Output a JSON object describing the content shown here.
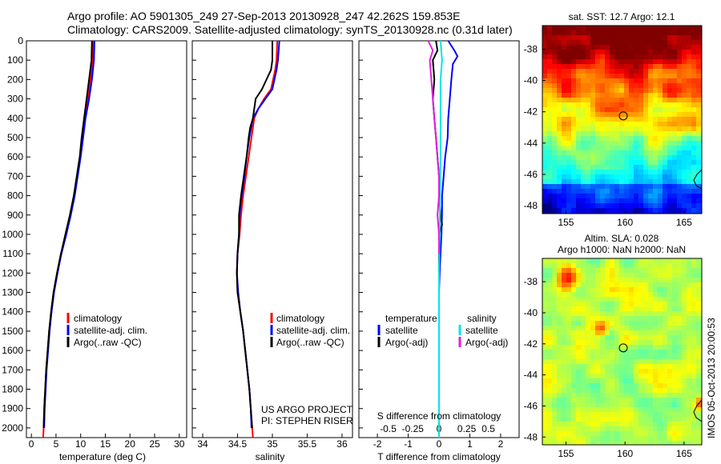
{
  "header": {
    "line1": "Argo profile: AO 5901305_249 27-Sep-2013 20130928_247 42.262S 159.853E",
    "line2": "Climatology: CARS2009. Satellite-adjusted climatology: synTS_20130928.nc (0.31d later)"
  },
  "credit": {
    "line1": "US ARGO PROJECT",
    "line2": "PI: STEPHEN RISER"
  },
  "side_stamp": "IMOS 05-Oct-2013 20:00:53",
  "colors": {
    "climatology": "#ff0000",
    "satellite": "#0000ff",
    "argo": "#000000",
    "salinity_satellite": "#00e6e6",
    "salinity_argo": "#e020e0",
    "marker": "#000000"
  },
  "chart_data": [
    {
      "type": "line",
      "id": "temperature-profile",
      "xlabel": "temperature (deg C)",
      "ylim": [
        2050,
        0
      ],
      "xlim": [
        -1,
        31.5
      ],
      "xticks": [
        0,
        5,
        10,
        15,
        20,
        25,
        30
      ],
      "yticks": [
        0,
        100,
        200,
        300,
        400,
        500,
        600,
        700,
        800,
        900,
        1000,
        1100,
        1200,
        1300,
        1400,
        1500,
        1600,
        1700,
        1800,
        1900,
        2000
      ],
      "legend": [
        "climatology",
        "satellite-adj. clim.",
        "Argo(..raw -QC)"
      ],
      "series": [
        {
          "name": "climatology",
          "color": "#ff0000",
          "points": [
            [
              12.5,
              0
            ],
            [
              12.4,
              100
            ],
            [
              12.0,
              200
            ],
            [
              11.5,
              300
            ],
            [
              10.9,
              400
            ],
            [
              10.4,
              500
            ],
            [
              9.9,
              600
            ],
            [
              9.3,
              700
            ],
            [
              8.7,
              800
            ],
            [
              7.9,
              900
            ],
            [
              7.0,
              1000
            ],
            [
              6.0,
              1100
            ],
            [
              5.2,
              1200
            ],
            [
              4.5,
              1300
            ],
            [
              4.0,
              1400
            ],
            [
              3.6,
              1500
            ],
            [
              3.3,
              1600
            ],
            [
              3.0,
              1700
            ],
            [
              2.8,
              1800
            ],
            [
              2.6,
              1900
            ],
            [
              2.5,
              2000
            ],
            [
              2.4,
              2050
            ]
          ]
        },
        {
          "name": "satellite-adj. clim.",
          "color": "#0000ff",
          "points": [
            [
              12.8,
              0
            ],
            [
              12.7,
              100
            ],
            [
              12.3,
              200
            ],
            [
              11.7,
              300
            ],
            [
              11.0,
              400
            ],
            [
              10.5,
              500
            ],
            [
              10.0,
              600
            ],
            [
              9.4,
              700
            ],
            [
              8.8,
              800
            ],
            [
              8.0,
              900
            ],
            [
              7.1,
              1000
            ],
            [
              6.1,
              1100
            ],
            [
              5.3,
              1200
            ],
            [
              4.6,
              1300
            ],
            [
              4.1,
              1400
            ],
            [
              3.7,
              1500
            ],
            [
              3.4,
              1600
            ],
            [
              3.1,
              1700
            ],
            [
              2.9,
              1800
            ],
            [
              2.7,
              1900
            ],
            [
              2.6,
              2000
            ]
          ]
        },
        {
          "name": "Argo(..raw -QC)",
          "color": "#000000",
          "points": [
            [
              12.3,
              0
            ],
            [
              12.2,
              100
            ],
            [
              11.7,
              200
            ],
            [
              11.2,
              300
            ],
            [
              10.7,
              400
            ],
            [
              10.2,
              500
            ],
            [
              9.8,
              600
            ],
            [
              9.2,
              700
            ],
            [
              8.6,
              800
            ],
            [
              7.8,
              900
            ],
            [
              6.9,
              1000
            ],
            [
              6.0,
              1100
            ],
            [
              5.2,
              1200
            ],
            [
              4.5,
              1300
            ],
            [
              4.0,
              1400
            ],
            [
              3.6,
              1500
            ],
            [
              3.3,
              1600
            ],
            [
              3.0,
              1700
            ],
            [
              2.8,
              1800
            ],
            [
              2.6,
              1900
            ],
            [
              2.5,
              2000
            ]
          ]
        }
      ]
    },
    {
      "type": "line",
      "id": "salinity-profile",
      "xlabel": "salinity",
      "ylim": [
        2050,
        0
      ],
      "xlim": [
        33.85,
        36.15
      ],
      "xticks": [
        34,
        34.5,
        35,
        35.5,
        36
      ],
      "legend": [
        "climatology",
        "satellite-adj. clim.",
        "Argo(..raw -QC)"
      ],
      "series": [
        {
          "name": "climatology",
          "color": "#ff0000",
          "points": [
            [
              35.07,
              0
            ],
            [
              35.06,
              100
            ],
            [
              35.04,
              150
            ],
            [
              34.98,
              250
            ],
            [
              34.88,
              300
            ],
            [
              34.8,
              350
            ],
            [
              34.74,
              400
            ],
            [
              34.7,
              500
            ],
            [
              34.66,
              600
            ],
            [
              34.62,
              700
            ],
            [
              34.58,
              800
            ],
            [
              34.55,
              900
            ],
            [
              34.53,
              1000
            ],
            [
              34.5,
              1100
            ],
            [
              34.49,
              1200
            ],
            [
              34.5,
              1300
            ],
            [
              34.54,
              1400
            ],
            [
              34.58,
              1500
            ],
            [
              34.61,
              1600
            ],
            [
              34.64,
              1700
            ],
            [
              34.67,
              1800
            ],
            [
              34.69,
              1900
            ],
            [
              34.71,
              2000
            ],
            [
              34.72,
              2050
            ]
          ]
        },
        {
          "name": "satellite-adj. clim.",
          "color": "#0000ff",
          "points": [
            [
              35.1,
              0
            ],
            [
              35.08,
              100
            ],
            [
              35.06,
              150
            ],
            [
              35.0,
              250
            ],
            [
              34.9,
              300
            ],
            [
              34.8,
              350
            ],
            [
              34.72,
              400
            ],
            [
              34.67,
              500
            ],
            [
              34.63,
              600
            ],
            [
              34.6,
              700
            ],
            [
              34.56,
              800
            ],
            [
              34.53,
              900
            ],
            [
              34.52,
              1000
            ],
            [
              34.5,
              1100
            ],
            [
              34.49,
              1200
            ],
            [
              34.51,
              1300
            ],
            [
              34.54,
              1400
            ],
            [
              34.58,
              1500
            ],
            [
              34.61,
              1600
            ],
            [
              34.64,
              1700
            ],
            [
              34.67,
              1800
            ],
            [
              34.69,
              1900
            ],
            [
              34.7,
              2000
            ]
          ]
        },
        {
          "name": "Argo(..raw -QC)",
          "color": "#000000",
          "points": [
            [
              35.0,
              0
            ],
            [
              35.0,
              100
            ],
            [
              34.98,
              150
            ],
            [
              34.85,
              250
            ],
            [
              34.76,
              300
            ],
            [
              34.72,
              400
            ],
            [
              34.68,
              450
            ],
            [
              34.66,
              500
            ],
            [
              34.63,
              600
            ],
            [
              34.59,
              700
            ],
            [
              34.55,
              800
            ],
            [
              34.52,
              900
            ],
            [
              34.52,
              1000
            ],
            [
              34.5,
              1100
            ],
            [
              34.49,
              1200
            ],
            [
              34.5,
              1300
            ],
            [
              34.54,
              1400
            ],
            [
              34.58,
              1500
            ],
            [
              34.61,
              1600
            ],
            [
              34.64,
              1700
            ],
            [
              34.67,
              1800
            ],
            [
              34.69,
              1900
            ],
            [
              34.71,
              2000
            ]
          ]
        }
      ]
    },
    {
      "type": "line",
      "id": "difference-profile",
      "xlabel": "T difference from climatology",
      "xlabel_top": "S difference from climatology",
      "ylim": [
        2050,
        0
      ],
      "xlim": [
        -2.6,
        2.6
      ],
      "xticks": [
        -2,
        -1,
        0,
        1,
        2
      ],
      "xticks_s": [
        {
          "pos": -1.65,
          "label": "-0.5"
        },
        {
          "pos": -0.85,
          "label": "-0.25"
        },
        {
          "pos": 0,
          "label": "0"
        },
        {
          "pos": 0.9,
          "label": "0.25"
        },
        {
          "pos": 1.6,
          "label": "0.5"
        }
      ],
      "legend_titles": [
        "temperature",
        "salinity"
      ],
      "legend": [
        "satellite",
        "Argo(-adj)",
        "satellite",
        "Argo(-adj)"
      ],
      "series": [
        {
          "name": "temperature satellite",
          "color": "#0000ff",
          "points": [
            [
              0.3,
              0
            ],
            [
              0.5,
              50
            ],
            [
              0.6,
              80
            ],
            [
              0.45,
              120
            ],
            [
              0.4,
              200
            ],
            [
              0.35,
              300
            ],
            [
              0.3,
              400
            ],
            [
              0.28,
              500
            ],
            [
              0.2,
              600
            ],
            [
              0.15,
              700
            ],
            [
              0.1,
              800
            ],
            [
              0.1,
              900
            ],
            [
              0.08,
              1000
            ],
            [
              0.05,
              1100
            ],
            [
              0.02,
              1200
            ],
            [
              0.0,
              1300
            ],
            [
              0.0,
              1400
            ]
          ]
        },
        {
          "name": "temperature Argo(-adj)",
          "color": "#000000",
          "points": [
            [
              -0.1,
              0
            ],
            [
              -0.05,
              50
            ],
            [
              -0.2,
              100
            ],
            [
              -0.15,
              200
            ],
            [
              -0.2,
              300
            ],
            [
              -0.15,
              400
            ],
            [
              -0.1,
              500
            ],
            [
              -0.05,
              600
            ],
            [
              0.0,
              700
            ],
            [
              0.0,
              800
            ],
            [
              0.05,
              900
            ],
            [
              0.1,
              950
            ],
            [
              0.0,
              1000
            ],
            [
              0.0,
              1100
            ],
            [
              0.0,
              1200
            ],
            [
              0.0,
              1300
            ],
            [
              0.0,
              1400
            ]
          ]
        },
        {
          "name": "salinity satellite",
          "color": "#00e6e6",
          "points": [
            [
              0.05,
              0
            ],
            [
              0.1,
              100
            ],
            [
              0.05,
              200
            ],
            [
              0.05,
              400
            ],
            [
              0.05,
              600
            ],
            [
              0.03,
              800
            ],
            [
              0.02,
              1000
            ],
            [
              0.0,
              1200
            ],
            [
              0.0,
              1400
            ],
            [
              0.0,
              1600
            ],
            [
              0.0,
              1800
            ],
            [
              0.0,
              2000
            ],
            [
              0.0,
              2050
            ]
          ]
        },
        {
          "name": "salinity Argo(-adj)",
          "color": "#e020e0",
          "points": [
            [
              -0.35,
              0
            ],
            [
              -0.2,
              50
            ],
            [
              -0.3,
              100
            ],
            [
              -0.25,
              200
            ],
            [
              -0.2,
              300
            ],
            [
              -0.15,
              400
            ],
            [
              -0.1,
              500
            ],
            [
              -0.05,
              600
            ],
            [
              0.0,
              700
            ],
            [
              0.0,
              800
            ],
            [
              -0.05,
              900
            ],
            [
              0.0,
              1000
            ],
            [
              0.0,
              1100
            ]
          ]
        }
      ]
    },
    {
      "type": "heatmap",
      "id": "sst-map",
      "title": "sat. SST: 12.7 Argo: 12.1",
      "xlim": [
        153,
        166.5
      ],
      "ylim": [
        -48.5,
        -36.5
      ],
      "xticks": [
        155,
        160,
        165
      ],
      "yticks": [
        -38,
        -40,
        -42,
        -44,
        -46,
        -48
      ],
      "marker": [
        159.853,
        -42.262
      ]
    },
    {
      "type": "heatmap",
      "id": "sla-map",
      "title_line1": "Altim. SLA: 0.028",
      "title_line2": "Argo h1000: NaN h2000: NaN",
      "xlim": [
        153,
        166.5
      ],
      "ylim": [
        -48.5,
        -36.5
      ],
      "xticks": [
        155,
        160,
        165
      ],
      "yticks": [
        -38,
        -40,
        -42,
        -44,
        -46,
        -48
      ],
      "marker": [
        159.853,
        -42.262
      ]
    }
  ]
}
